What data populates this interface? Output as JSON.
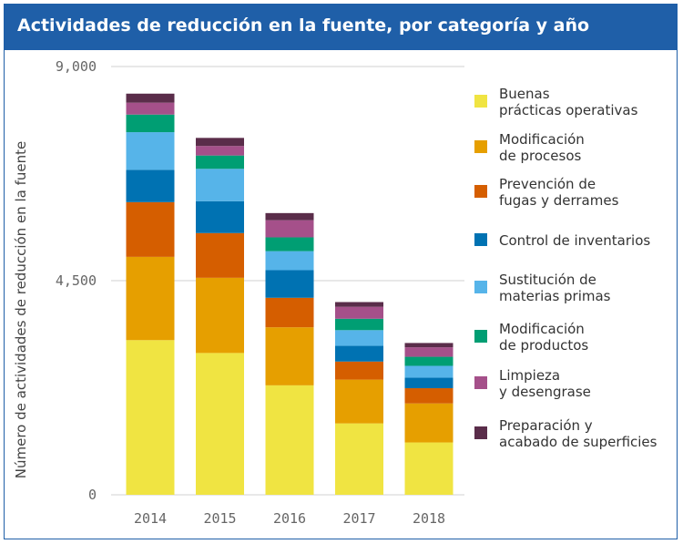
{
  "header": {
    "title": "Actividades de reducción en la fuente, por categoría y año"
  },
  "chart_data": {
    "type": "bar",
    "stacked": true,
    "title": "Actividades de reducción en la fuente, por categoría y año",
    "xlabel": "",
    "ylabel": "Número de actividades de reducción en la fuente",
    "ylim": [
      0,
      9000
    ],
    "yticks": [
      "0",
      "4,500",
      "9,000"
    ],
    "ytick_values": [
      0,
      4500,
      9000
    ],
    "categories": [
      "2014",
      "2015",
      "2016",
      "2017",
      "2018"
    ],
    "legend_position": "right",
    "grid": false,
    "series": [
      {
        "name": "Buenas prácticas operativas",
        "label_lines": [
          "Buenas",
          "prácticas operativas"
        ],
        "color": "#f0e442",
        "values": [
          3250,
          2980,
          2300,
          1500,
          1100
        ]
      },
      {
        "name": "Modificación de procesos",
        "label_lines": [
          "Modificación",
          "de procesos"
        ],
        "color": "#e69f00",
        "values": [
          1750,
          1580,
          1220,
          920,
          820
        ]
      },
      {
        "name": "Prevención de fugas y derrames",
        "label_lines": [
          "Prevención de",
          "fugas y derrames"
        ],
        "color": "#d55e00",
        "values": [
          1150,
          940,
          620,
          380,
          320
        ]
      },
      {
        "name": "Control de inventarios",
        "label_lines": [
          "Control de inventarios"
        ],
        "color": "#0072b2",
        "values": [
          680,
          670,
          580,
          330,
          220
        ]
      },
      {
        "name": "Sustitución de materias primas",
        "label_lines": [
          "Sustitución de",
          "materias primas"
        ],
        "color": "#56b4e9",
        "values": [
          790,
          680,
          400,
          330,
          250
        ]
      },
      {
        "name": "Modificación de productos",
        "label_lines": [
          "Modificación",
          "de productos"
        ],
        "color": "#009e73",
        "values": [
          370,
          280,
          290,
          240,
          190
        ]
      },
      {
        "name": "Limpieza y desengrase",
        "label_lines": [
          "Limpieza",
          "y desengrase"
        ],
        "color": "#a5508a",
        "values": [
          250,
          200,
          360,
          250,
          200
        ]
      },
      {
        "name": "Preparación y acabado de superficies",
        "label_lines": [
          "Preparación y",
          "acabado de superficies"
        ],
        "color": "#5a2d4a",
        "values": [
          190,
          170,
          150,
          100,
          90
        ]
      }
    ]
  }
}
